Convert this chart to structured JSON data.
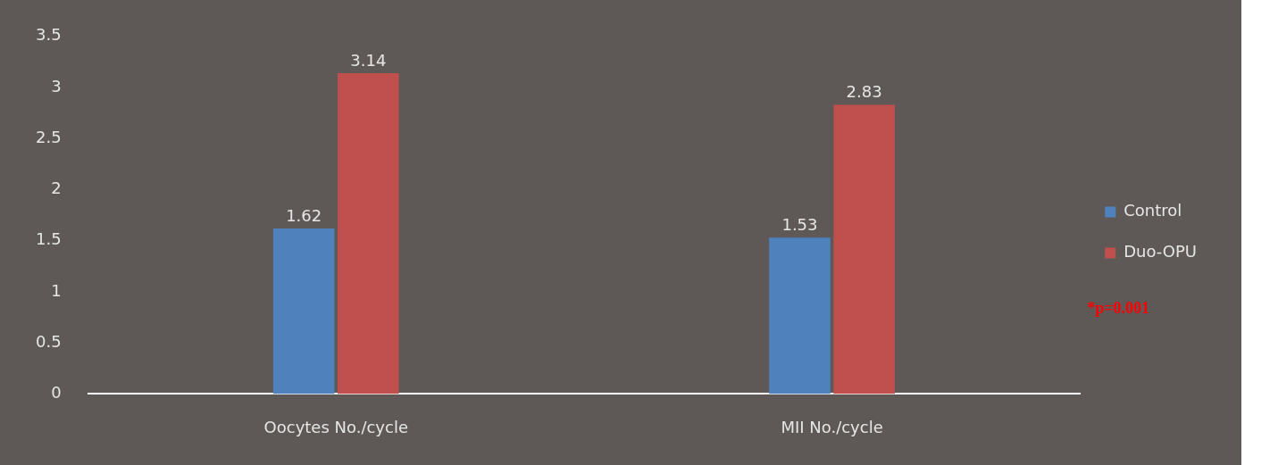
{
  "chart_data": {
    "type": "bar",
    "categories": [
      "Oocytes No./cycle",
      "MII No./cycle"
    ],
    "series": [
      {
        "name": "Control",
        "color": "#4f81bd",
        "values": [
          1.62,
          1.53
        ]
      },
      {
        "name": "Duo-OPU",
        "color": "#c0504d",
        "values": [
          3.14,
          2.83
        ]
      }
    ],
    "ylim": [
      0,
      3.5
    ],
    "yticks": [
      0,
      0.5,
      1,
      1.5,
      2,
      2.5,
      3,
      3.5
    ],
    "grid": false,
    "legend": "right",
    "data_labels": true,
    "annotations": [
      "*p=0.001"
    ]
  }
}
